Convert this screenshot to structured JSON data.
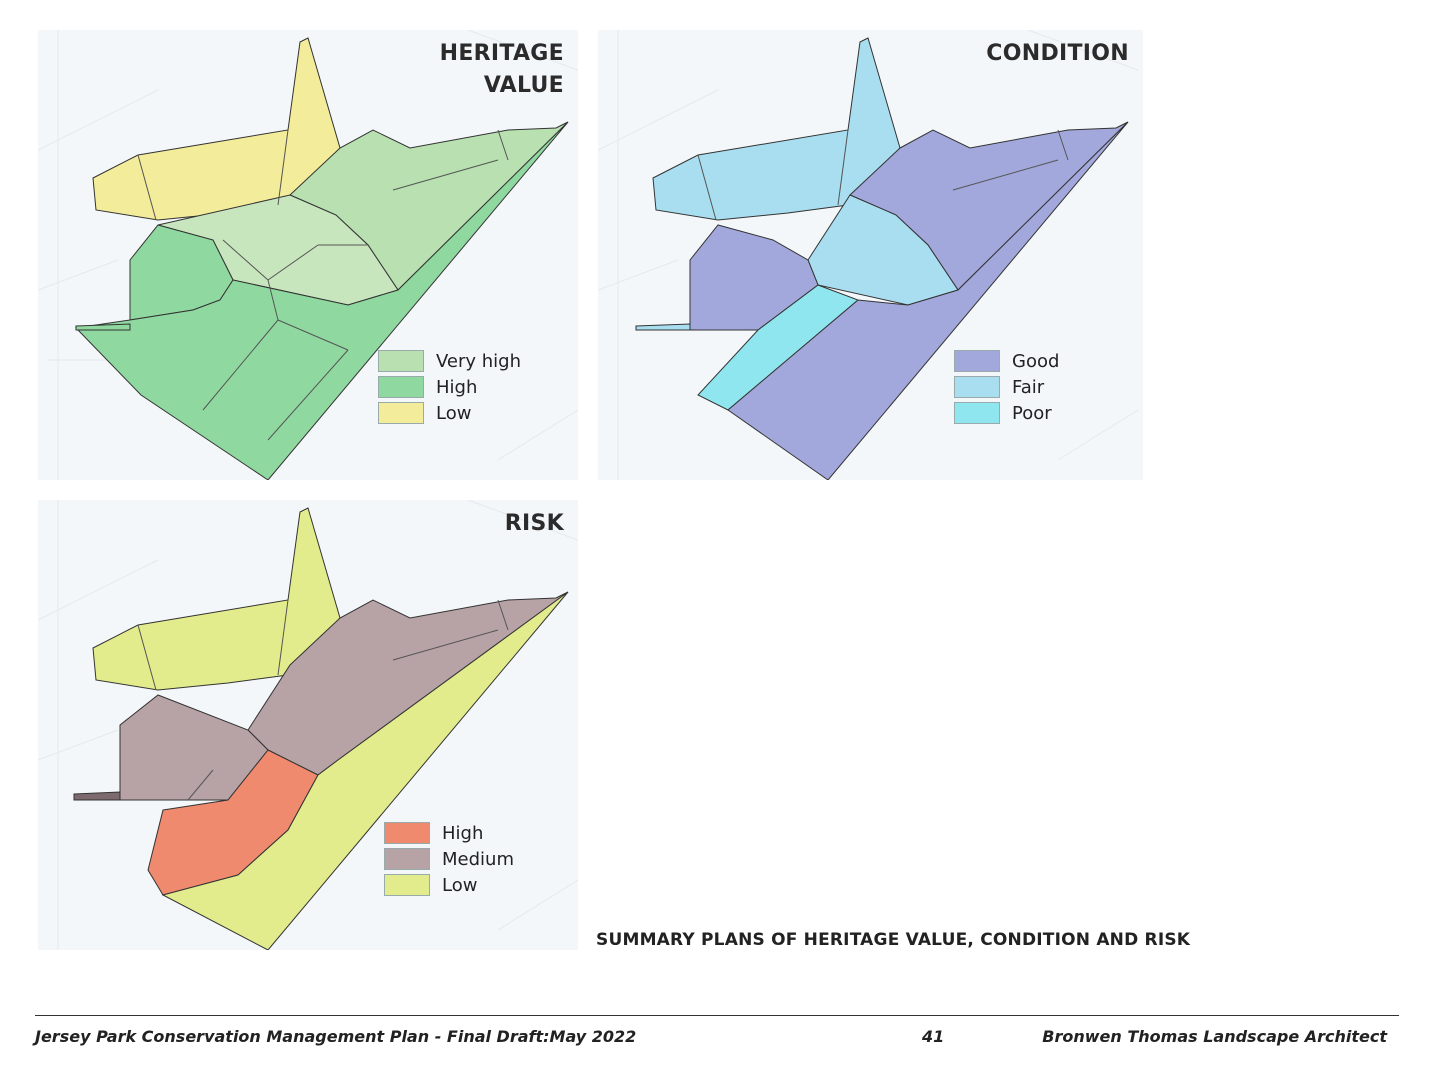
{
  "maps": [
    {
      "title_lines": [
        "HERITAGE",
        "VALUE"
      ],
      "legend": [
        {
          "label": "Very high",
          "color": "#b8e0b0"
        },
        {
          "label": "High",
          "color": "#8fd9a0"
        },
        {
          "label": "Low",
          "color": "#f3ec9a"
        }
      ]
    },
    {
      "title_lines": [
        "CONDITION"
      ],
      "legend": [
        {
          "label": "Good",
          "color": "#a2a8dc"
        },
        {
          "label": "Fair",
          "color": "#a9def0"
        },
        {
          "label": "Poor",
          "color": "#8fe6ee"
        }
      ]
    },
    {
      "title_lines": [
        "RISK"
      ],
      "legend": [
        {
          "label": "High",
          "color": "#ef8a6e"
        },
        {
          "label": "Medium",
          "color": "#b7a2a6"
        },
        {
          "label": "Low",
          "color": "#e2ec8c"
        }
      ]
    }
  ],
  "caption": "SUMMARY PLANS OF HERITAGE VALUE, CONDITION AND RISK",
  "footer": {
    "left": "Jersey Park Conservation Management Plan - Final Draft:May 2022",
    "page_number": "41",
    "right": "Bronwen Thomas Landscape Architect"
  }
}
